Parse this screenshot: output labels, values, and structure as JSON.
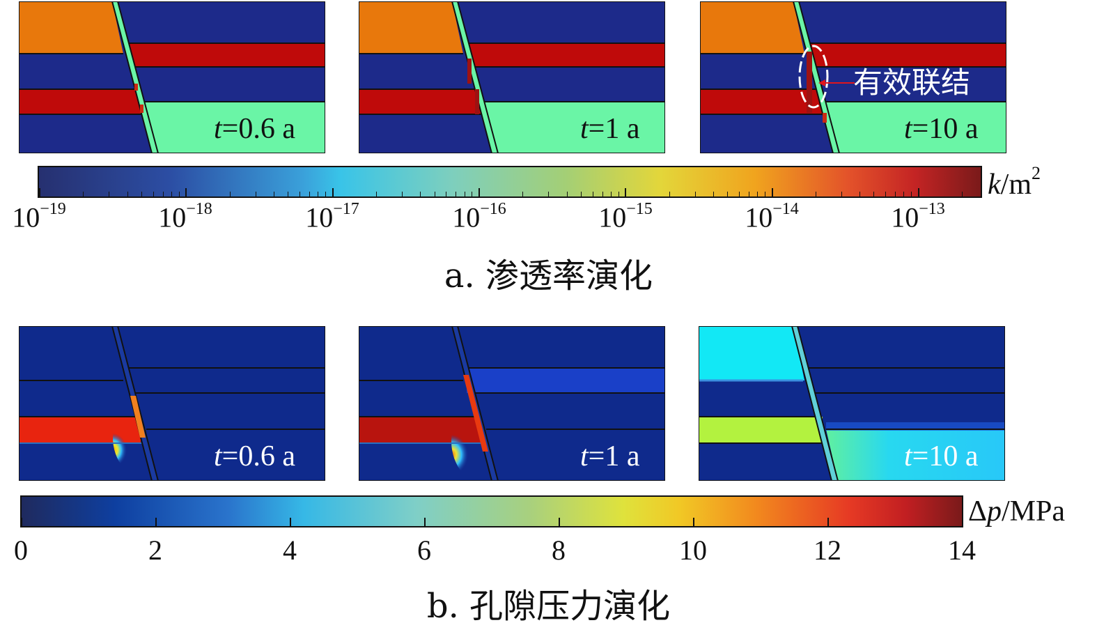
{
  "section_a": {
    "caption": "a. 渗透率演化",
    "panels": [
      {
        "time_label_italic": "t",
        "time_label_rest": "=0.6 a"
      },
      {
        "time_label_italic": "t",
        "time_label_rest": "=1 a"
      },
      {
        "time_label_italic": "t",
        "time_label_rest": "=10 a"
      }
    ],
    "annotation": "有效联结",
    "colorbar": {
      "unit_italic": "k",
      "unit_rest": "/m",
      "unit_sup": "2",
      "scale": "log",
      "ticks": [
        {
          "base": "10",
          "exp": "−19"
        },
        {
          "base": "10",
          "exp": "−18"
        },
        {
          "base": "10",
          "exp": "−17"
        },
        {
          "base": "10",
          "exp": "−16"
        },
        {
          "base": "10",
          "exp": "−15"
        },
        {
          "base": "10",
          "exp": "−14"
        },
        {
          "base": "10",
          "exp": "−13"
        }
      ]
    }
  },
  "section_b": {
    "caption": "b. 孔隙压力演化",
    "panels": [
      {
        "time_label_italic": "t",
        "time_label_rest": "=0.6 a"
      },
      {
        "time_label_italic": "t",
        "time_label_rest": "=1 a"
      },
      {
        "time_label_italic": "t",
        "time_label_rest": "=10 a"
      }
    ],
    "colorbar": {
      "unit_prefix": "Δ",
      "unit_italic": "p",
      "unit_rest": "/MPa",
      "ticks": [
        "0",
        "2",
        "4",
        "6",
        "8",
        "10",
        "12",
        "14"
      ]
    }
  },
  "colors": {
    "navy": "#1d2a8a",
    "orange": "#e8780c",
    "red": "#bf0a0a",
    "mint": "#6af5a6",
    "cyan": "#12e8f5",
    "lime": "#b3f23f",
    "annotation_red": "#e0161c"
  }
}
